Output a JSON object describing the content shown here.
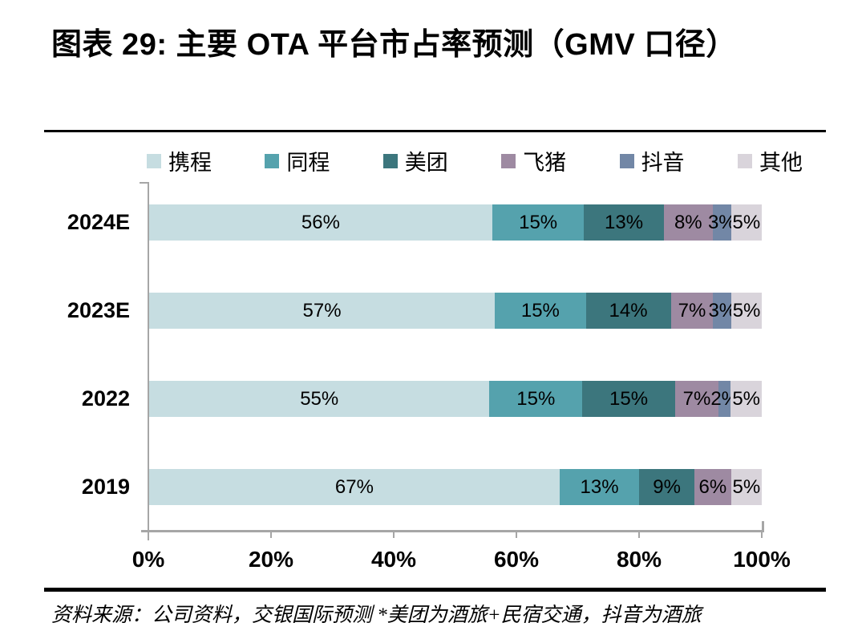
{
  "title": "图表 29: 主要 OTA 平台市占率预测（GMV 口径）",
  "source_note": "资料来源：公司资料，交银国际预测  *美团为酒旅+民宿交通，抖音为酒旅",
  "colors": {
    "axis": "#a6a6a6",
    "text": "#000000",
    "rule": "#000000",
    "background": "#ffffff"
  },
  "chart_data": {
    "type": "bar",
    "orientation": "horizontal",
    "stacked": true,
    "title": "图表 29: 主要 OTA 平台市占率预测（GMV 口径）",
    "categories": [
      "2024E",
      "2023E",
      "2022",
      "2019"
    ],
    "series": [
      {
        "name": "携程",
        "color": "#c6dde1",
        "values": [
          56,
          57,
          55,
          67
        ]
      },
      {
        "name": "同程",
        "color": "#55a2ad",
        "values": [
          15,
          15,
          15,
          13
        ]
      },
      {
        "name": "美团",
        "color": "#3c767d",
        "values": [
          13,
          14,
          15,
          9
        ]
      },
      {
        "name": "飞猪",
        "color": "#9e8aa2",
        "values": [
          8,
          7,
          7,
          6
        ]
      },
      {
        "name": "抖音",
        "color": "#7287a6",
        "values": [
          3,
          3,
          2,
          0
        ]
      },
      {
        "name": "其他",
        "color": "#d9d4db",
        "values": [
          5,
          5,
          5,
          5
        ]
      }
    ],
    "value_suffix": "%",
    "xlim": [
      0,
      100
    ],
    "x_tick_labels": [
      "0%",
      "20%",
      "40%",
      "60%",
      "80%",
      "100%"
    ],
    "legend_position": "top",
    "grid": false,
    "data_labels": "inside-center"
  }
}
